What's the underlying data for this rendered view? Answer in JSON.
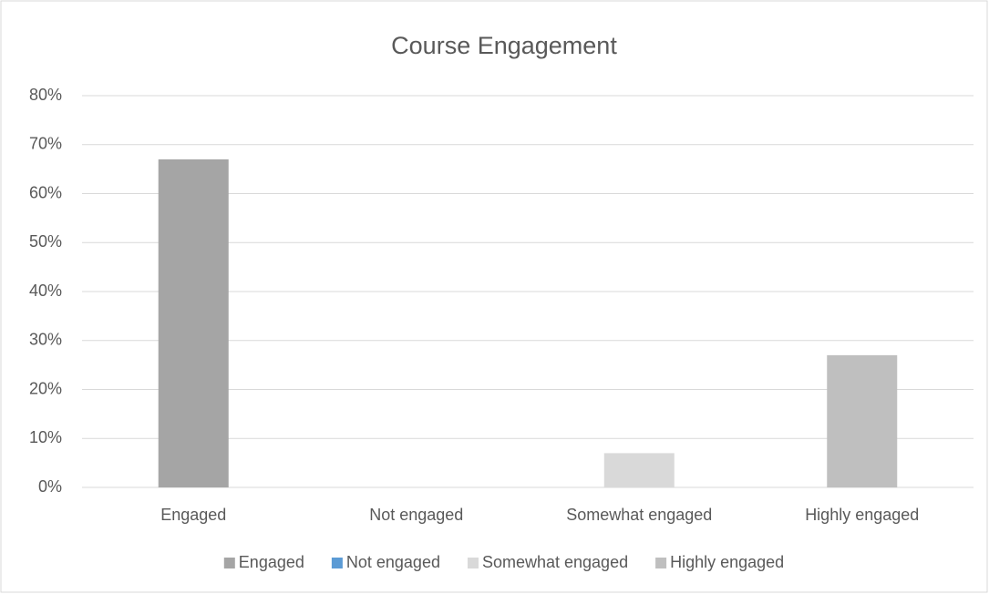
{
  "chart_data": {
    "type": "bar",
    "title": "Course Engagement",
    "categories": [
      "Engaged",
      "Not engaged",
      "Somewhat engaged",
      "Highly engaged"
    ],
    "values": [
      67,
      0,
      7,
      27
    ],
    "colors": [
      "#a5a5a5",
      "#5b9bd5",
      "#d9d9d9",
      "#bfbfbf"
    ],
    "ylim": [
      0,
      80
    ],
    "yticks": [
      {
        "value": 0,
        "label": "0%"
      },
      {
        "value": 10,
        "label": "10%"
      },
      {
        "value": 20,
        "label": "20%"
      },
      {
        "value": 30,
        "label": "30%"
      },
      {
        "value": 40,
        "label": "40%"
      },
      {
        "value": 50,
        "label": "50%"
      },
      {
        "value": 60,
        "label": "60%"
      },
      {
        "value": 70,
        "label": "70%"
      },
      {
        "value": 80,
        "label": "80%"
      }
    ],
    "grid": true,
    "legend": "bottom"
  }
}
